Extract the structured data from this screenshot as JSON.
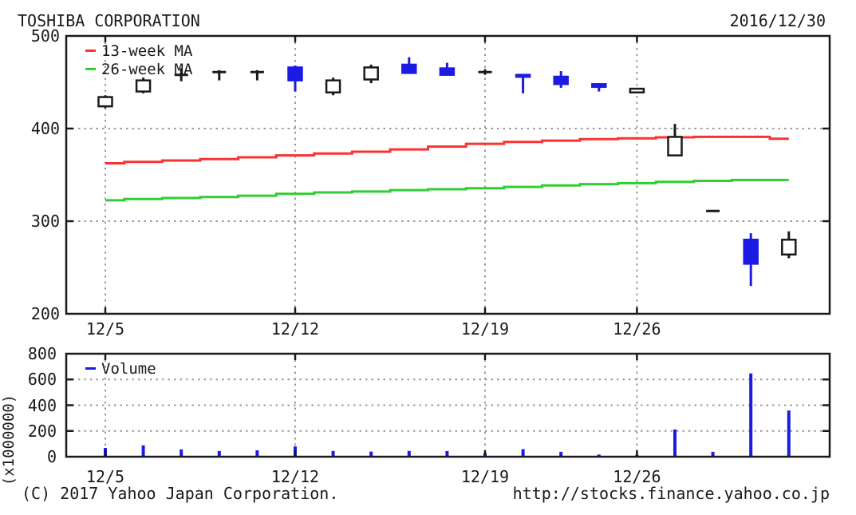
{
  "header": {
    "title": "TOSHIBA CORPORATION",
    "date": "2016/12/30"
  },
  "footer": {
    "copyright": "(C) 2017 Yahoo Japan Corporation.",
    "url": "http://stocks.finance.yahoo.co.jp"
  },
  "colors": {
    "background": "#ffffff",
    "border": "#1a1a1a",
    "text": "#1a1a1a",
    "grid": "#999999",
    "up_candle_fill": "#ffffff",
    "up_candle_stroke": "#1a1a1a",
    "down_candle": "#1b1be4",
    "doji_candle": "#1a1a1a",
    "ma13": "#fa3232",
    "ma26": "#32cd32",
    "volume_bar": "#1b1be4"
  },
  "chart_data": [
    {
      "type": "candlestick",
      "panel": "price",
      "ylim": [
        200,
        500
      ],
      "yticks": [
        500,
        400,
        300,
        200
      ],
      "grid_yticks": [
        400,
        300
      ],
      "xtick_labels": [
        "12/5",
        "12/12",
        "12/19",
        "12/26"
      ],
      "xtick_indices": [
        0,
        5,
        10,
        14
      ],
      "grid": true,
      "legend_position": "top-left",
      "dates": [
        "12/5",
        "12/6",
        "12/7",
        "12/8",
        "12/9",
        "12/12",
        "12/13",
        "12/14",
        "12/15",
        "12/16",
        "12/19",
        "12/20",
        "12/21",
        "12/22",
        "12/26",
        "12/27",
        "12/28",
        "12/29",
        "12/30"
      ],
      "ohlc": [
        [
          424,
          436,
          422,
          434
        ],
        [
          440,
          455,
          438,
          452
        ],
        [
          458,
          465,
          451,
          458
        ],
        [
          461,
          463,
          452,
          461
        ],
        [
          461,
          463,
          452,
          461
        ],
        [
          466,
          468,
          440,
          452
        ],
        [
          439,
          455,
          436,
          452
        ],
        [
          453,
          469,
          449,
          466
        ],
        [
          469,
          477,
          460,
          460
        ],
        [
          465,
          471,
          458,
          458
        ],
        [
          461,
          464,
          458,
          461
        ],
        [
          458,
          459,
          438,
          456
        ],
        [
          456,
          462,
          444,
          448
        ],
        [
          448,
          449,
          440,
          445
        ],
        [
          439,
          444,
          438,
          443
        ],
        [
          371,
          405,
          370,
          391
        ],
        [
          311,
          312,
          310,
          311
        ],
        [
          280,
          287,
          230,
          254
        ],
        [
          264,
          289,
          260,
          280
        ]
      ],
      "series": [
        {
          "name": "13-week MA",
          "color_key": "ma13",
          "values": [
            362.5,
            364,
            365.5,
            367,
            369,
            371,
            373,
            375,
            377.5,
            380.5,
            383.5,
            385.5,
            387,
            388.5,
            389.5,
            390.5,
            391,
            391,
            389
          ]
        },
        {
          "name": "26-week MA",
          "color_key": "ma26",
          "values": [
            322.5,
            324,
            325,
            326,
            327.5,
            329.5,
            331,
            332,
            333.5,
            334.5,
            335.5,
            337,
            338.5,
            340,
            341,
            342.5,
            343.5,
            344.5,
            344.5
          ]
        }
      ]
    },
    {
      "type": "bar",
      "panel": "volume",
      "legend_label": "Volume",
      "ylabel": "(x1000000)",
      "ylim": [
        0,
        800
      ],
      "yticks": [
        800,
        600,
        400,
        200,
        0
      ],
      "grid_yticks": [
        600,
        400,
        200
      ],
      "xtick_labels": [
        "12/5",
        "12/12",
        "12/19",
        "12/26"
      ],
      "xtick_indices": [
        0,
        5,
        10,
        14
      ],
      "grid": true,
      "values": [
        68,
        88,
        57,
        44,
        50,
        80,
        44,
        40,
        45,
        44,
        28,
        59,
        38,
        17,
        15,
        212,
        38,
        647,
        359
      ]
    }
  ]
}
